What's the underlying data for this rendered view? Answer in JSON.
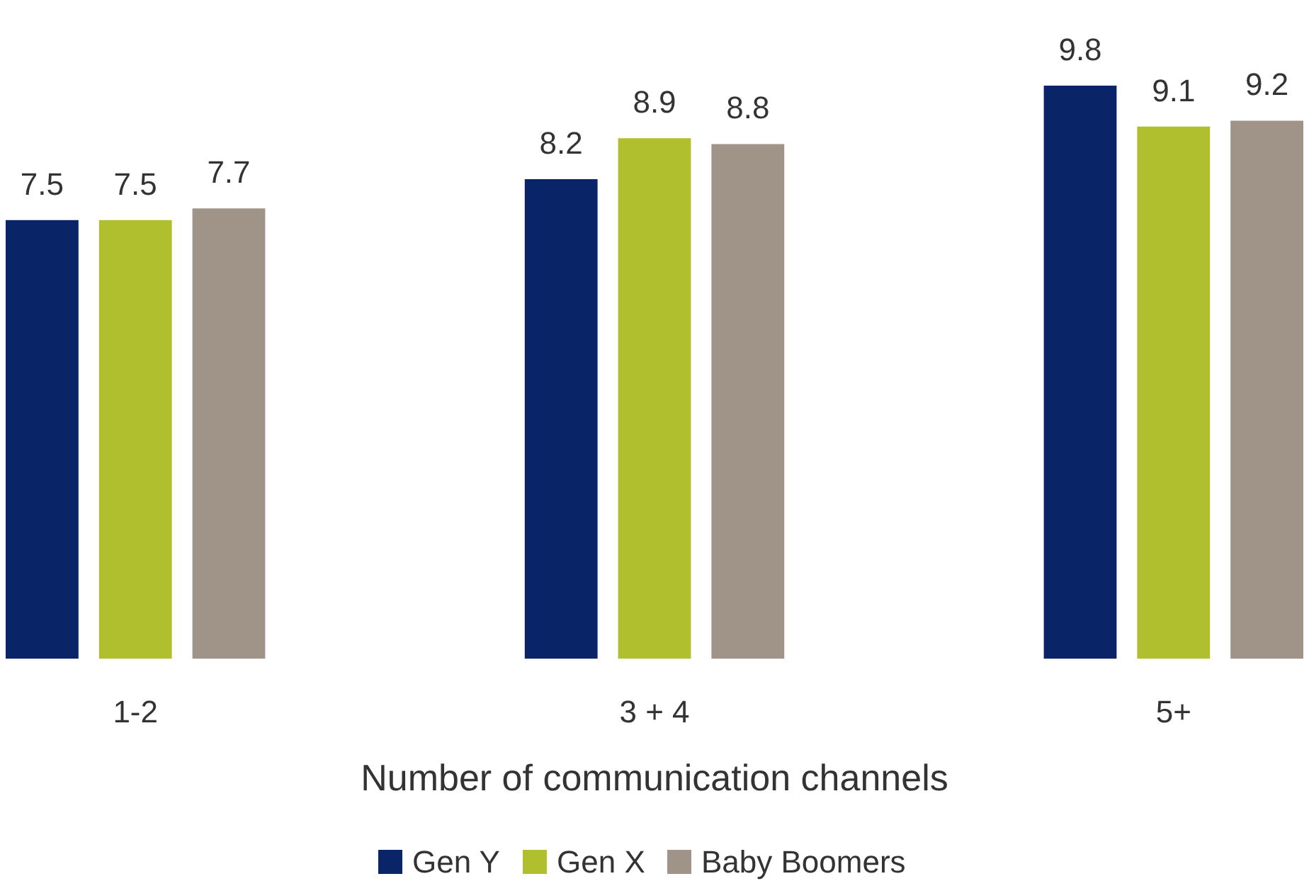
{
  "chart_data": {
    "type": "bar",
    "xlabel": "Number of communication channels",
    "categories": [
      "1-2",
      "3 + 4",
      "5+"
    ],
    "series": [
      {
        "name": "Gen Y",
        "color": "#0a2567",
        "values": [
          7.5,
          8.2,
          9.8
        ]
      },
      {
        "name": "Gen X",
        "color": "#b0bf2e",
        "values": [
          7.5,
          8.9,
          9.1
        ]
      },
      {
        "name": "Baby Boomers",
        "color": "#a09488",
        "values": [
          7.7,
          8.8,
          9.2
        ]
      }
    ],
    "data_labels": true,
    "legend": "bottom",
    "grid": false
  }
}
